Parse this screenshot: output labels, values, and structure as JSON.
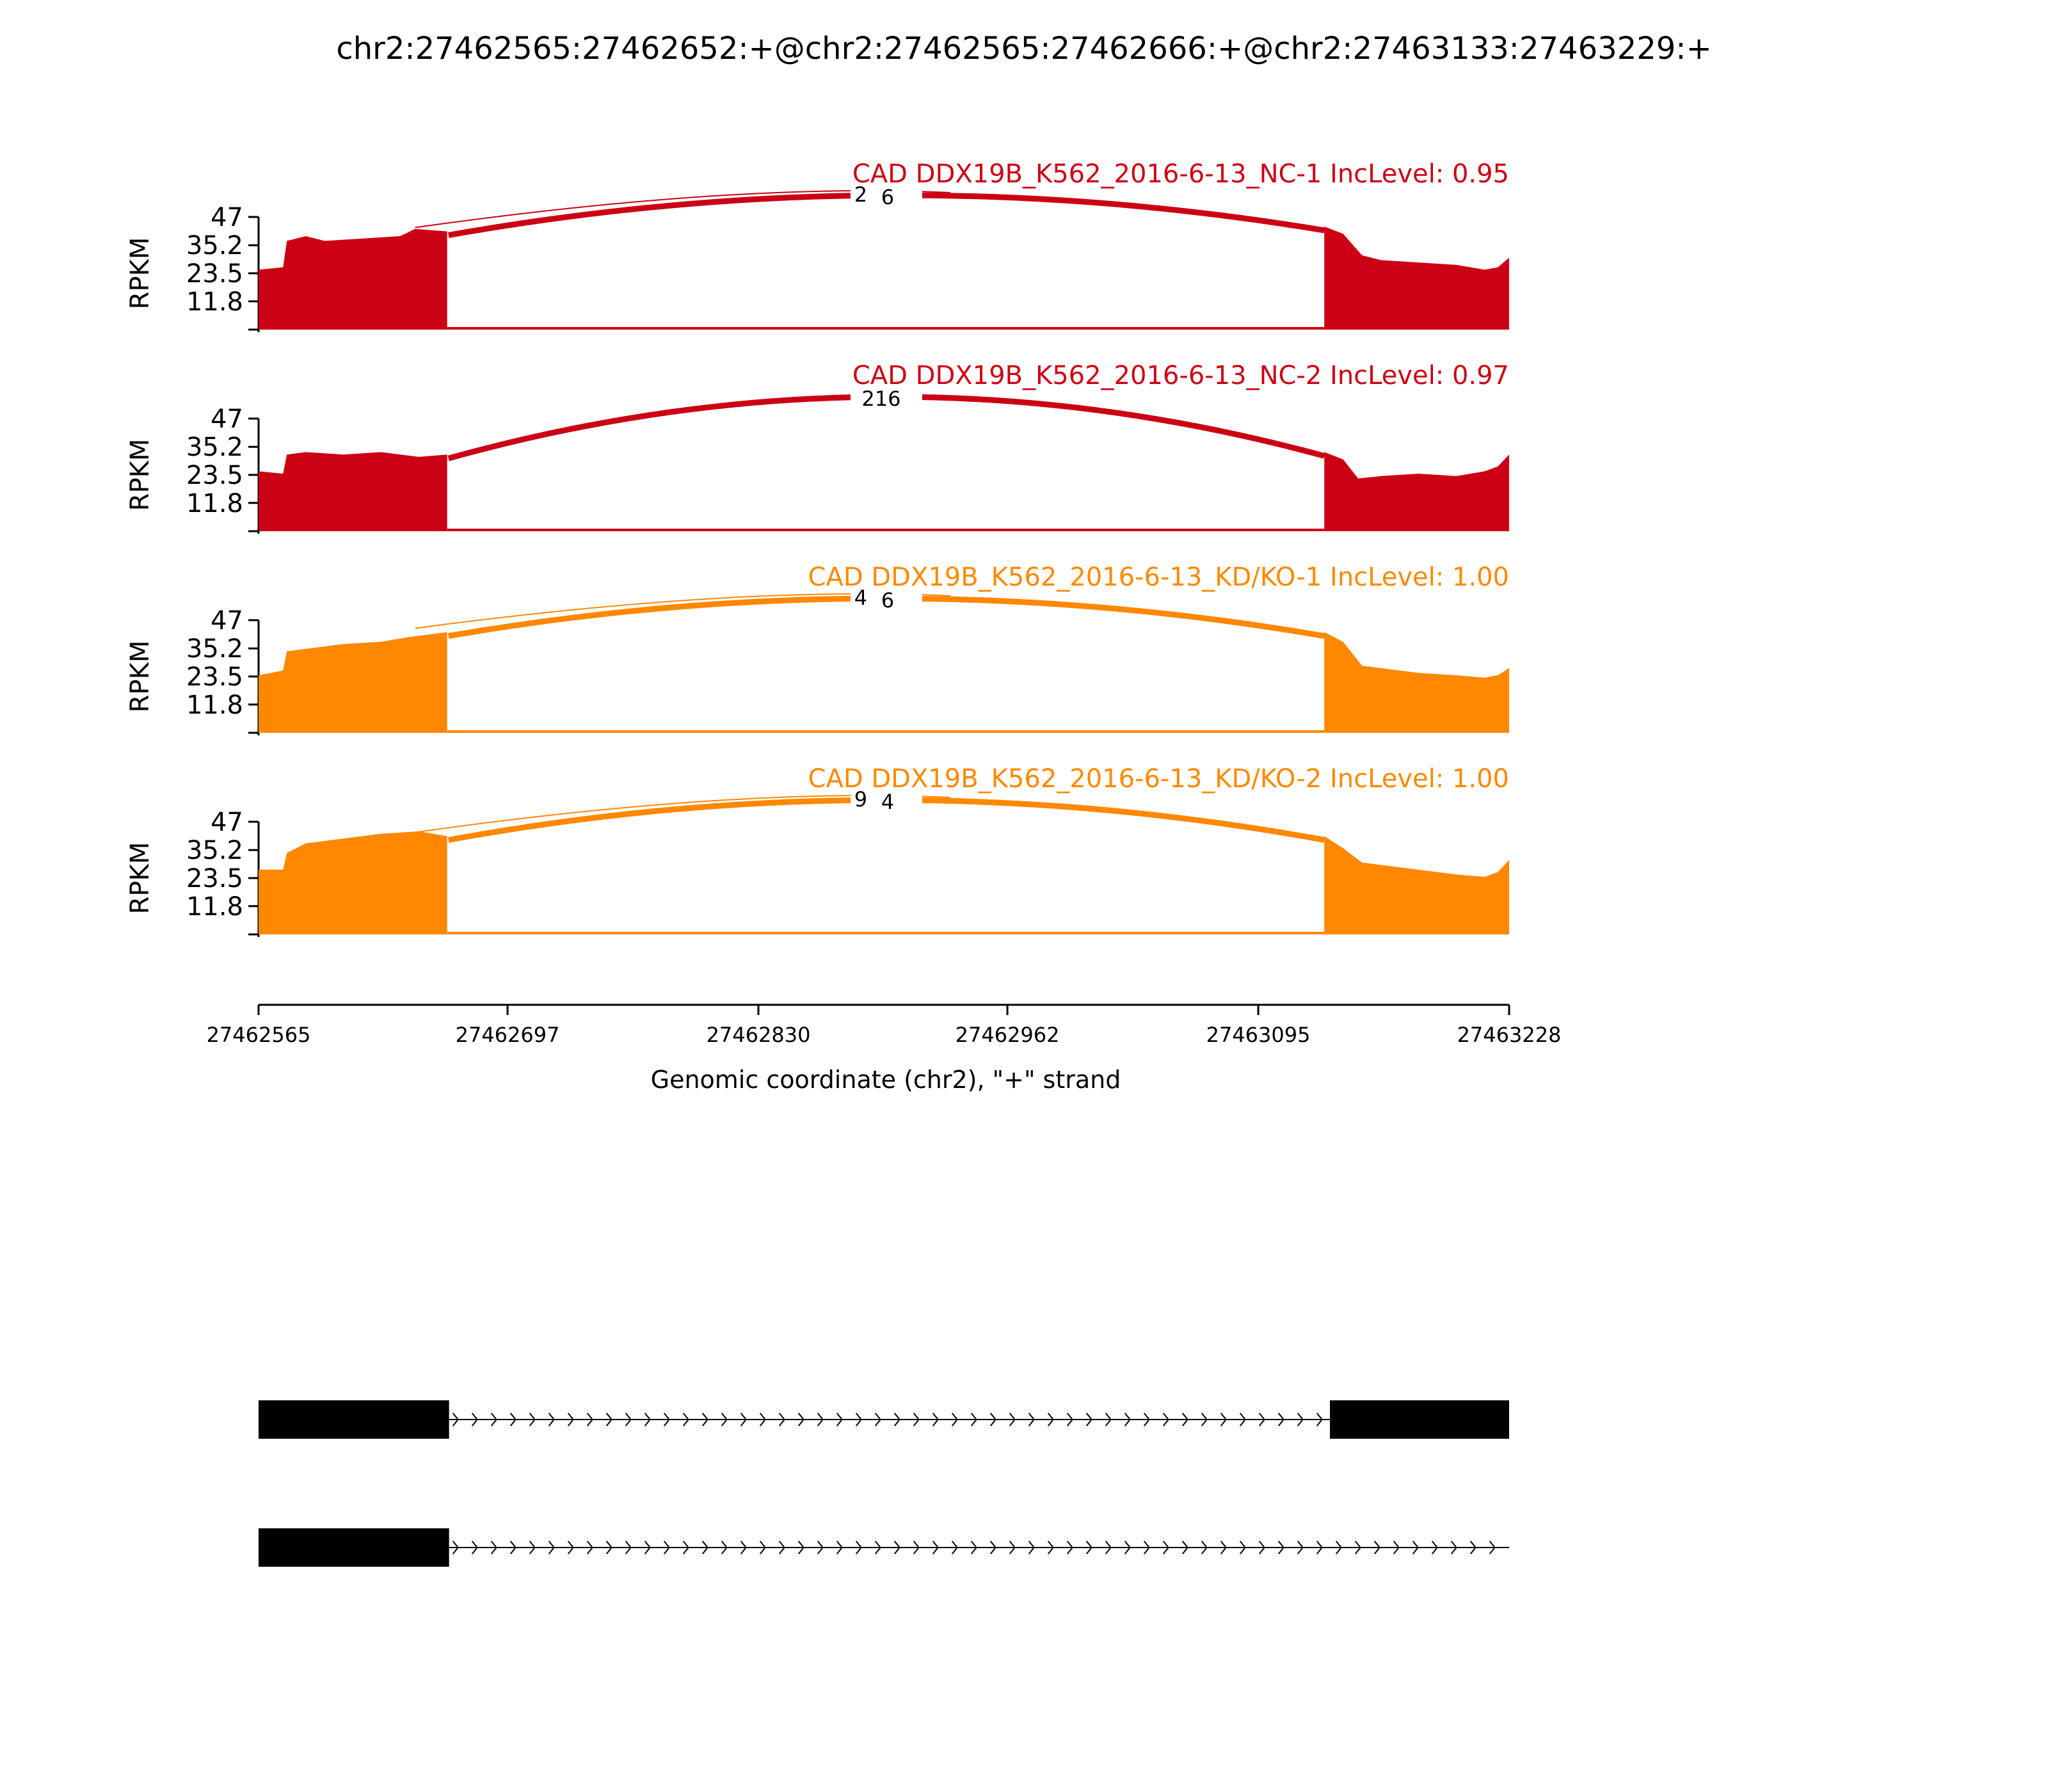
{
  "chart_data": {
    "type": "area",
    "title": "chr2:27462565:27462652:+@chr2:27462565:27462666:+@chr2:27463133:27463229:+",
    "xlabel": "Genomic coordinate (chr2), \"+\" strand",
    "ylabel": "RPKM",
    "xlim": [
      27462565,
      27463228
    ],
    "ylim": [
      0,
      47
    ],
    "x_ticks": [
      27462565,
      27462697,
      27462830,
      27462962,
      27463095,
      27463228
    ],
    "y_ticks": [
      11.8,
      23.5,
      35.2,
      47
    ],
    "colors": {
      "nc": "#cc0014",
      "kd": "#ff8800",
      "axis": "#000000",
      "gene": "#000000"
    },
    "exon1_end": 27462665,
    "exon2_start": 27463130,
    "tracks": [
      {
        "label": "CAD DDX19B_K562_2016-6-13_NC-1 IncLevel: 0.95",
        "group": "nc",
        "junction_labels": [
          "2",
          "6"
        ],
        "exon1_profile": [
          [
            27462565,
            25
          ],
          [
            27462578,
            26
          ],
          [
            27462580,
            37
          ],
          [
            27462590,
            39
          ],
          [
            27462600,
            37
          ],
          [
            27462620,
            38
          ],
          [
            27462640,
            39
          ],
          [
            27462648,
            42
          ],
          [
            27462665,
            41
          ]
        ],
        "exon2_profile": [
          [
            27463130,
            43
          ],
          [
            27463140,
            40
          ],
          [
            27463150,
            31
          ],
          [
            27463160,
            29
          ],
          [
            27463180,
            28
          ],
          [
            27463200,
            27
          ],
          [
            27463215,
            25
          ],
          [
            27463222,
            26
          ],
          [
            27463228,
            30
          ]
        ]
      },
      {
        "label": "CAD DDX19B_K562_2016-6-13_NC-2 IncLevel: 0.97",
        "group": "nc",
        "junction_labels": [
          "216"
        ],
        "exon1_profile": [
          [
            27462565,
            25
          ],
          [
            27462578,
            24
          ],
          [
            27462580,
            32
          ],
          [
            27462590,
            33
          ],
          [
            27462610,
            32
          ],
          [
            27462630,
            33
          ],
          [
            27462650,
            31
          ],
          [
            27462665,
            32
          ]
        ],
        "exon2_profile": [
          [
            27463130,
            33
          ],
          [
            27463140,
            30
          ],
          [
            27463148,
            22
          ],
          [
            27463160,
            23
          ],
          [
            27463180,
            24
          ],
          [
            27463200,
            23
          ],
          [
            27463215,
            25
          ],
          [
            27463222,
            27
          ],
          [
            27463228,
            32
          ]
        ]
      },
      {
        "label": "CAD DDX19B_K562_2016-6-13_KD/KO-1 IncLevel: 1.00",
        "group": "kd",
        "junction_labels": [
          "4",
          "6"
        ],
        "exon1_profile": [
          [
            27462565,
            24
          ],
          [
            27462578,
            26
          ],
          [
            27462580,
            34
          ],
          [
            27462590,
            35
          ],
          [
            27462610,
            37
          ],
          [
            27462630,
            38
          ],
          [
            27462645,
            40
          ],
          [
            27462665,
            42
          ]
        ],
        "exon2_profile": [
          [
            27463130,
            42
          ],
          [
            27463140,
            38
          ],
          [
            27463150,
            28
          ],
          [
            27463160,
            27
          ],
          [
            27463180,
            25
          ],
          [
            27463200,
            24
          ],
          [
            27463215,
            23
          ],
          [
            27463222,
            24
          ],
          [
            27463228,
            27
          ]
        ]
      },
      {
        "label": "CAD DDX19B_K562_2016-6-13_KD/KO-2 IncLevel: 1.00",
        "group": "kd",
        "junction_labels": [
          "9",
          "4"
        ],
        "exon1_profile": [
          [
            27462565,
            27
          ],
          [
            27462578,
            27
          ],
          [
            27462580,
            34
          ],
          [
            27462590,
            38
          ],
          [
            27462610,
            40
          ],
          [
            27462630,
            42
          ],
          [
            27462650,
            43
          ],
          [
            27462665,
            41
          ]
        ],
        "exon2_profile": [
          [
            27463130,
            41
          ],
          [
            27463140,
            36
          ],
          [
            27463150,
            30
          ],
          [
            27463160,
            29
          ],
          [
            27463180,
            27
          ],
          [
            27463200,
            25
          ],
          [
            27463215,
            24
          ],
          [
            27463222,
            26
          ],
          [
            27463228,
            31
          ]
        ]
      }
    ],
    "isoforms": [
      {
        "exons": [
          [
            27462565,
            27462666
          ],
          [
            27463133,
            27463228
          ]
        ]
      },
      {
        "exons": [
          [
            27462565,
            27462666
          ]
        ]
      }
    ]
  }
}
